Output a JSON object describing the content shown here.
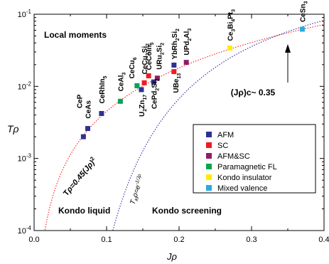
{
  "chart_data": {
    "type": "scatter",
    "xlabel": "Jρ",
    "ylabel": "Tρ",
    "xlim": [
      0.0,
      0.4
    ],
    "ylim": [
      0.0001,
      0.1
    ],
    "yscale": "log",
    "x_ticks": [
      {
        "v": 0.0,
        "label": "0.0"
      },
      {
        "v": 0.1,
        "label": "0.1"
      },
      {
        "v": 0.2,
        "label": "0.2"
      },
      {
        "v": 0.3,
        "label": "0.3"
      },
      {
        "v": 0.4,
        "label": "0.4"
      }
    ],
    "y_ticks": [
      {
        "v": 0.0001,
        "base": "10",
        "exp": "-4"
      },
      {
        "v": 0.001,
        "base": "10",
        "exp": "-3"
      },
      {
        "v": 0.01,
        "base": "10",
        "exp": "-2"
      },
      {
        "v": 0.1,
        "base": "10",
        "exp": "-1"
      }
    ],
    "legend": [
      {
        "name": "AFM",
        "color": "#2e3192"
      },
      {
        "name": "SC",
        "color": "#ed1c24"
      },
      {
        "name": "AFM&SC",
        "color": "#8b2064"
      },
      {
        "name": "Paramagnetic FL",
        "color": "#00a651"
      },
      {
        "name": "Kondo insulator",
        "color": "#ffed00"
      },
      {
        "name": "Mixed valence",
        "color": "#29abe2"
      }
    ],
    "points": [
      {
        "label": "CeP",
        "x": 0.068,
        "y": 0.002,
        "cls": "AFM"
      },
      {
        "label": "CeAs",
        "x": 0.074,
        "y": 0.0026,
        "cls": "AFM"
      },
      {
        "label": "CeRhIn5",
        "x": 0.093,
        "y": 0.0042,
        "cls": "AFM"
      },
      {
        "label": "CeAl3",
        "x": 0.119,
        "y": 0.0062,
        "cls": "Paramagnetic FL"
      },
      {
        "label": "U2Zn17",
        "x": 0.148,
        "y": 0.009,
        "cls": "AFM"
      },
      {
        "label": "CeCu6",
        "x": 0.142,
        "y": 0.0102,
        "cls": "Paramagnetic FL"
      },
      {
        "label": "CeCu2Si2",
        "x": 0.152,
        "y": 0.0112,
        "cls": "SC"
      },
      {
        "label": "CePd2Si2",
        "x": 0.165,
        "y": 0.0115,
        "cls": "AFM"
      },
      {
        "label": "CeCoIn5",
        "x": 0.158,
        "y": 0.014,
        "cls": "SC"
      },
      {
        "label": "URu2Si2",
        "x": 0.17,
        "y": 0.013,
        "cls": "AFM&SC"
      },
      {
        "label": "UBe13",
        "x": 0.193,
        "y": 0.016,
        "cls": "SC"
      },
      {
        "label": "YbRh2Si2",
        "x": 0.193,
        "y": 0.0197,
        "cls": "AFM"
      },
      {
        "label": "UPd2Al3",
        "x": 0.21,
        "y": 0.0215,
        "cls": "AFM&SC"
      },
      {
        "label": "Ce3Bi4Pt3",
        "x": 0.27,
        "y": 0.034,
        "cls": "Kondo insulator"
      },
      {
        "label": "CeSn3",
        "x": 0.37,
        "y": 0.062,
        "cls": "Mixed valence"
      }
    ],
    "curves": [
      {
        "name": "Tρ=0.45(Jρ)2",
        "color": "#ff2a2a",
        "type": "power",
        "a": 0.45,
        "n": 2
      },
      {
        "name": "TKρ=e-1/Jρ",
        "color": "#3a3ab0",
        "type": "exp"
      }
    ],
    "annotations": {
      "local_moments": "Local moments",
      "kondo_liquid": "Kondo liquid",
      "kondo_screening": "Kondo screening",
      "critical": "(Jρ)c~ 0.35",
      "critical_x": 0.35
    }
  }
}
